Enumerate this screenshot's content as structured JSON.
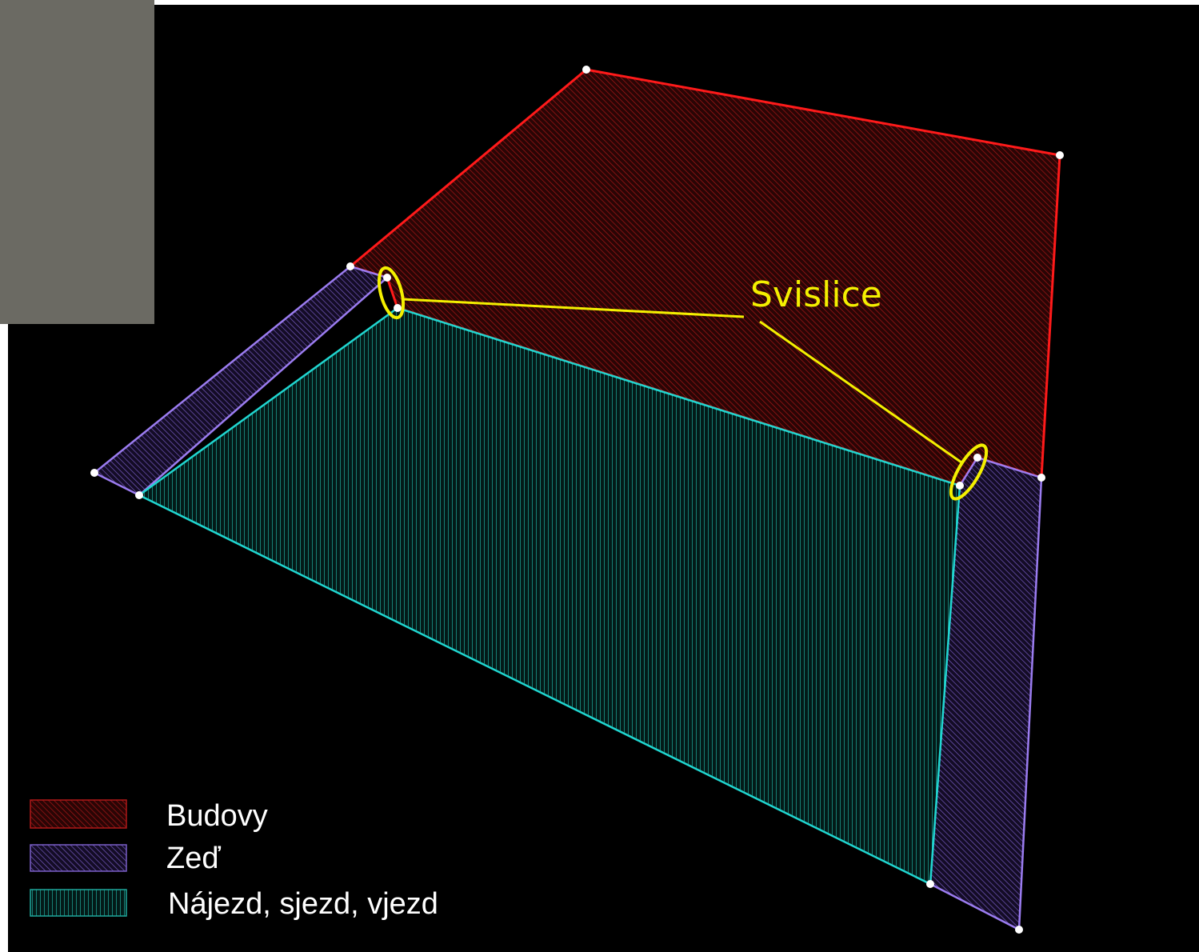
{
  "annotation": "Svislice",
  "legend": [
    "Budovy",
    "Zeď",
    "Nájezd, sjezd, vjezd"
  ]
}
